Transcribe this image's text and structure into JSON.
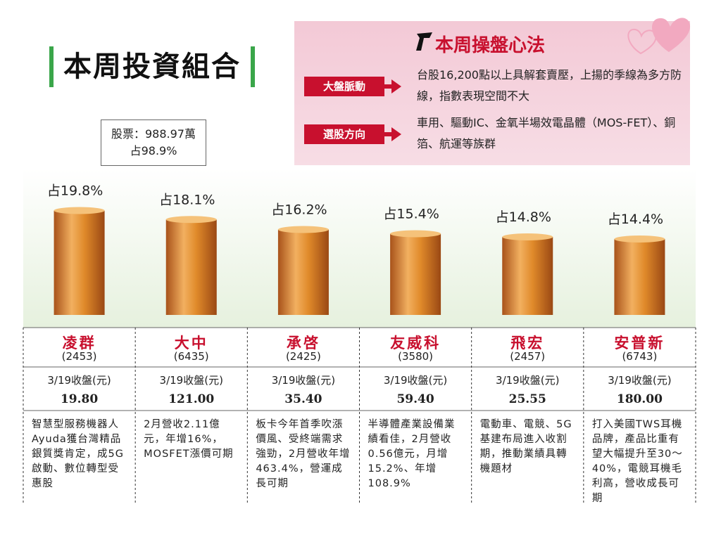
{
  "header": {
    "title": "本周投資組合",
    "stock_line1": "股票：988.97萬",
    "stock_line2": "占98.9%"
  },
  "strategy": {
    "title": "本周操盤心法",
    "items": [
      {
        "tag": "大盤脈動",
        "text": "台股16,200點以上具解套賣壓，上揚的季線為多方防線，指數表現空間不大"
      },
      {
        "tag": "選股方向",
        "text": "車用、驅動IC、金氧半場效電晶體（MOS-FET）、銅箔、航運等族群"
      }
    ]
  },
  "chart_data": {
    "type": "bar",
    "categories": [
      "凌群",
      "大中",
      "承啓",
      "友威科",
      "飛宏",
      "安普新"
    ],
    "values": [
      19.8,
      18.1,
      16.2,
      15.4,
      14.8,
      14.4
    ],
    "value_labels": [
      "占19.8%",
      "占18.1%",
      "占16.2%",
      "占15.4%",
      "占14.8%",
      "占14.4%"
    ],
    "color": "#e08a2a"
  },
  "table": {
    "codes": [
      "(2453)",
      "(6435)",
      "(2425)",
      "(3580)",
      "(2457)",
      "(6743)"
    ],
    "close_label": "3/19收盤(元)",
    "prices": [
      "19.80",
      "121.00",
      "35.40",
      "59.40",
      "25.55",
      "180.00"
    ],
    "descriptions": [
      "智慧型服務機器人Ayuda獲台灣精品銀質獎肯定，成5G啟動、數位轉型受惠股",
      "2月營收2.11億元，年增16%，MOSFET漲價可期",
      "板卡今年首季吹漲價風、受終端需求強勁，2月營收年增463.4%，營運成長可期",
      "半導體產業設備業績看佳，2月營收0.56億元，月增15.2%、年增108.9%",
      "電動車、電競、5G基建布局進入收割期，推動業績具轉機題材",
      "打入美國TWS耳機品牌，產品比重有望大幅提升至30～40%，電競耳機毛利高，營收成長可期"
    ]
  }
}
